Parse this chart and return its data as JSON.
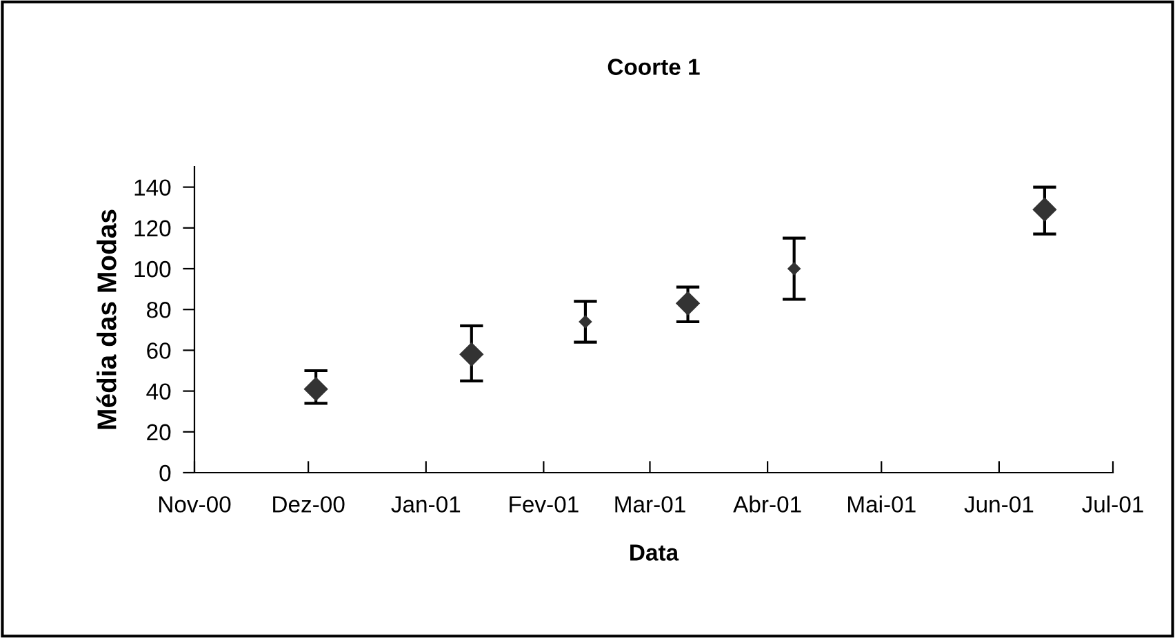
{
  "chart_data": {
    "type": "scatter",
    "title": "Coorte 1",
    "xlabel": "Data",
    "ylabel": "Média das Modas",
    "series": [
      {
        "color": "#333333",
        "marker": "diamond",
        "x": [
          "2000-12-03",
          "2001-01-13",
          "2001-03-11",
          "2001-06-13"
        ],
        "values": [
          41,
          58,
          83,
          129
        ],
        "errors": [
          [
            34,
            50
          ],
          [
            45,
            72
          ],
          [
            74,
            91
          ],
          [
            117,
            140
          ]
        ]
      },
      {
        "color": "#333333",
        "marker": "diamond",
        "x": [
          "2001-02-12",
          "2001-04-08"
        ],
        "values": [
          74,
          100
        ],
        "errors": [
          [
            64,
            84
          ],
          [
            85,
            115
          ]
        ]
      }
    ],
    "xlim": [
      "2000-11-01",
      "2001-07-01"
    ],
    "xticks": [
      {
        "value": "2000-11-01",
        "label": "Nov-00"
      },
      {
        "value": "2000-12-01",
        "label": "Dez-00"
      },
      {
        "value": "2001-01-01",
        "label": "Jan-01"
      },
      {
        "value": "2001-02-01",
        "label": "Fev-01"
      },
      {
        "value": "2001-03-01",
        "label": "Mar-01"
      },
      {
        "value": "2001-04-01",
        "label": "Abr-01"
      },
      {
        "value": "2001-05-01",
        "label": "Mai-01"
      },
      {
        "value": "2001-06-01",
        "label": "Jun-01"
      },
      {
        "value": "2001-07-01",
        "label": "Jul-01"
      }
    ],
    "ylim": [
      0,
      150
    ],
    "yticks": [
      0,
      20,
      40,
      60,
      80,
      100,
      120,
      140
    ],
    "grid": false,
    "legend": false
  }
}
